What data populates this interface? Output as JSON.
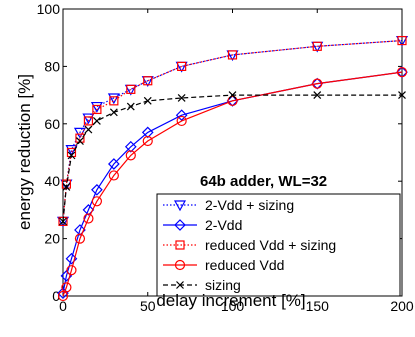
{
  "chart_data": {
    "type": "line",
    "xlabel": "delay increment [%]",
    "ylabel": "energy reduction [%]",
    "xlim": [
      0,
      200
    ],
    "ylim": [
      0,
      100
    ],
    "x_ticks": [
      "0",
      "50",
      "100",
      "150",
      "200"
    ],
    "y_ticks": [
      "0",
      "20",
      "40",
      "60",
      "80",
      "100"
    ],
    "grid": false,
    "legend_position": "bottom-right",
    "annotation": "64b adder, WL=32",
    "series": [
      {
        "name": "2-Vdd + sizing",
        "color": "#0000ff",
        "line_style": "dotted",
        "marker": "triangle-down",
        "x": [
          0,
          2,
          5,
          10,
          15,
          20,
          30,
          40,
          50,
          70,
          100,
          150,
          200
        ],
        "y": [
          26,
          39,
          51,
          57,
          62,
          66,
          69,
          72,
          75,
          80,
          84,
          87,
          89
        ]
      },
      {
        "name": "2-Vdd",
        "color": "#0000ff",
        "line_style": "solid",
        "marker": "diamond",
        "x": [
          0,
          2,
          5,
          10,
          15,
          20,
          30,
          40,
          50,
          70,
          100,
          150,
          200
        ],
        "y": [
          1,
          7,
          13,
          23,
          30,
          37,
          46,
          52,
          57,
          63,
          68,
          74,
          78
        ]
      },
      {
        "name": "reduced Vdd + sizing",
        "color": "#ff0000",
        "line_style": "dotted",
        "marker": "square",
        "x": [
          0,
          2,
          5,
          10,
          15,
          20,
          30,
          40,
          50,
          70,
          100,
          150,
          200
        ],
        "y": [
          26,
          39,
          50,
          55,
          61,
          65,
          68,
          72,
          75,
          80,
          84,
          87,
          89
        ]
      },
      {
        "name": "reduced Vdd",
        "color": "#ff0000",
        "line_style": "solid",
        "marker": "circle",
        "x": [
          0,
          2,
          5,
          10,
          15,
          20,
          30,
          40,
          50,
          70,
          100,
          150,
          200
        ],
        "y": [
          0,
          3,
          9,
          20,
          27,
          33,
          42,
          49,
          54,
          61,
          68,
          74,
          78
        ]
      },
      {
        "name": "sizing",
        "color": "#000000",
        "line_style": "dashed",
        "marker": "x",
        "x": [
          0,
          2,
          5,
          10,
          15,
          20,
          30,
          40,
          50,
          70,
          100,
          150,
          200
        ],
        "y": [
          26,
          38,
          49,
          54,
          58,
          61,
          64,
          66,
          68,
          69,
          70,
          70,
          70
        ]
      }
    ]
  }
}
